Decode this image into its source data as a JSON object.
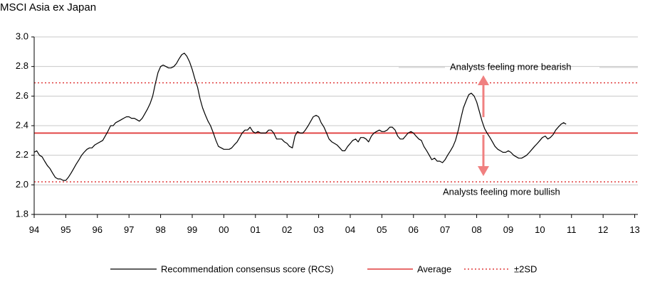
{
  "title": "MSCI Asia ex Japan",
  "colors": {
    "rcs": "#000000",
    "average": "#e03c3c",
    "band": "#e03c3c",
    "arrow": "#f08080",
    "grid": "#c8c8c8"
  },
  "chart_data": {
    "type": "line",
    "xlabel": "",
    "ylabel": "",
    "x_tick_labels": [
      "94",
      "95",
      "96",
      "97",
      "98",
      "99",
      "00",
      "01",
      "02",
      "03",
      "04",
      "05",
      "06",
      "07",
      "08",
      "09",
      "10",
      "11",
      "12",
      "13"
    ],
    "x_range": [
      1994,
      2013.1
    ],
    "y_tick_labels": [
      "1.8",
      "2.0",
      "2.2",
      "2.4",
      "2.6",
      "2.8",
      "3.0"
    ],
    "ylim": [
      1.8,
      3.0
    ],
    "grid": true,
    "average": 2.35,
    "upper_2sd": 2.69,
    "lower_2sd": 2.02,
    "series": [
      {
        "name": "Recommendation consensus score (RCS)",
        "points": [
          [
            1994.0,
            2.22
          ],
          [
            1994.08,
            2.23
          ],
          [
            1994.17,
            2.2
          ],
          [
            1994.25,
            2.19
          ],
          [
            1994.33,
            2.16
          ],
          [
            1994.42,
            2.13
          ],
          [
            1994.5,
            2.11
          ],
          [
            1994.58,
            2.08
          ],
          [
            1994.67,
            2.05
          ],
          [
            1994.75,
            2.04
          ],
          [
            1994.83,
            2.04
          ],
          [
            1994.92,
            2.03
          ],
          [
            1995.0,
            2.03
          ],
          [
            1995.08,
            2.05
          ],
          [
            1995.17,
            2.08
          ],
          [
            1995.25,
            2.11
          ],
          [
            1995.33,
            2.14
          ],
          [
            1995.42,
            2.17
          ],
          [
            1995.5,
            2.2
          ],
          [
            1995.58,
            2.22
          ],
          [
            1995.67,
            2.24
          ],
          [
            1995.75,
            2.25
          ],
          [
            1995.83,
            2.25
          ],
          [
            1995.92,
            2.27
          ],
          [
            1996.0,
            2.28
          ],
          [
            1996.17,
            2.3
          ],
          [
            1996.33,
            2.36
          ],
          [
            1996.42,
            2.4
          ],
          [
            1996.5,
            2.4
          ],
          [
            1996.58,
            2.42
          ],
          [
            1996.67,
            2.43
          ],
          [
            1996.75,
            2.44
          ],
          [
            1996.83,
            2.45
          ],
          [
            1996.92,
            2.46
          ],
          [
            1997.0,
            2.46
          ],
          [
            1997.08,
            2.45
          ],
          [
            1997.17,
            2.45
          ],
          [
            1997.25,
            2.44
          ],
          [
            1997.33,
            2.43
          ],
          [
            1997.42,
            2.45
          ],
          [
            1997.5,
            2.48
          ],
          [
            1997.58,
            2.51
          ],
          [
            1997.67,
            2.55
          ],
          [
            1997.75,
            2.6
          ],
          [
            1997.83,
            2.68
          ],
          [
            1997.92,
            2.76
          ],
          [
            1998.0,
            2.8
          ],
          [
            1998.08,
            2.81
          ],
          [
            1998.17,
            2.8
          ],
          [
            1998.25,
            2.79
          ],
          [
            1998.33,
            2.79
          ],
          [
            1998.42,
            2.8
          ],
          [
            1998.5,
            2.82
          ],
          [
            1998.58,
            2.85
          ],
          [
            1998.67,
            2.88
          ],
          [
            1998.75,
            2.89
          ],
          [
            1998.83,
            2.87
          ],
          [
            1998.92,
            2.83
          ],
          [
            1999.0,
            2.78
          ],
          [
            1999.08,
            2.72
          ],
          [
            1999.17,
            2.66
          ],
          [
            1999.25,
            2.58
          ],
          [
            1999.33,
            2.52
          ],
          [
            1999.42,
            2.47
          ],
          [
            1999.5,
            2.43
          ],
          [
            1999.58,
            2.4
          ],
          [
            1999.67,
            2.35
          ],
          [
            1999.75,
            2.3
          ],
          [
            1999.83,
            2.26
          ],
          [
            1999.92,
            2.25
          ],
          [
            2000.0,
            2.24
          ],
          [
            2000.08,
            2.24
          ],
          [
            2000.17,
            2.24
          ],
          [
            2000.25,
            2.25
          ],
          [
            2000.33,
            2.27
          ],
          [
            2000.42,
            2.29
          ],
          [
            2000.5,
            2.32
          ],
          [
            2000.58,
            2.35
          ],
          [
            2000.67,
            2.37
          ],
          [
            2000.75,
            2.37
          ],
          [
            2000.83,
            2.39
          ],
          [
            2000.92,
            2.36
          ],
          [
            2001.0,
            2.35
          ],
          [
            2001.08,
            2.36
          ],
          [
            2001.17,
            2.35
          ],
          [
            2001.25,
            2.35
          ],
          [
            2001.33,
            2.35
          ],
          [
            2001.42,
            2.37
          ],
          [
            2001.5,
            2.37
          ],
          [
            2001.58,
            2.35
          ],
          [
            2001.67,
            2.31
          ],
          [
            2001.75,
            2.31
          ],
          [
            2001.83,
            2.31
          ],
          [
            2001.92,
            2.29
          ],
          [
            2002.0,
            2.28
          ],
          [
            2002.08,
            2.26
          ],
          [
            2002.17,
            2.25
          ],
          [
            2002.25,
            2.33
          ],
          [
            2002.33,
            2.36
          ],
          [
            2002.42,
            2.35
          ],
          [
            2002.5,
            2.35
          ],
          [
            2002.58,
            2.37
          ],
          [
            2002.67,
            2.4
          ],
          [
            2002.75,
            2.43
          ],
          [
            2002.83,
            2.46
          ],
          [
            2002.92,
            2.47
          ],
          [
            2003.0,
            2.46
          ],
          [
            2003.08,
            2.42
          ],
          [
            2003.17,
            2.39
          ],
          [
            2003.25,
            2.35
          ],
          [
            2003.33,
            2.31
          ],
          [
            2003.42,
            2.29
          ],
          [
            2003.5,
            2.28
          ],
          [
            2003.58,
            2.27
          ],
          [
            2003.67,
            2.25
          ],
          [
            2003.75,
            2.23
          ],
          [
            2003.83,
            2.23
          ],
          [
            2003.92,
            2.26
          ],
          [
            2004.0,
            2.28
          ],
          [
            2004.08,
            2.3
          ],
          [
            2004.17,
            2.31
          ],
          [
            2004.25,
            2.29
          ],
          [
            2004.33,
            2.32
          ],
          [
            2004.42,
            2.32
          ],
          [
            2004.5,
            2.31
          ],
          [
            2004.58,
            2.29
          ],
          [
            2004.67,
            2.33
          ],
          [
            2004.75,
            2.35
          ],
          [
            2004.83,
            2.36
          ],
          [
            2004.92,
            2.37
          ],
          [
            2005.0,
            2.36
          ],
          [
            2005.08,
            2.36
          ],
          [
            2005.17,
            2.37
          ],
          [
            2005.25,
            2.39
          ],
          [
            2005.33,
            2.39
          ],
          [
            2005.42,
            2.37
          ],
          [
            2005.5,
            2.33
          ],
          [
            2005.58,
            2.31
          ],
          [
            2005.67,
            2.31
          ],
          [
            2005.75,
            2.33
          ],
          [
            2005.83,
            2.35
          ],
          [
            2005.92,
            2.36
          ],
          [
            2006.0,
            2.35
          ],
          [
            2006.08,
            2.33
          ],
          [
            2006.17,
            2.31
          ],
          [
            2006.25,
            2.3
          ],
          [
            2006.33,
            2.26
          ],
          [
            2006.42,
            2.23
          ],
          [
            2006.5,
            2.2
          ],
          [
            2006.58,
            2.17
          ],
          [
            2006.67,
            2.18
          ],
          [
            2006.75,
            2.16
          ],
          [
            2006.83,
            2.16
          ],
          [
            2006.92,
            2.15
          ],
          [
            2007.0,
            2.17
          ],
          [
            2007.08,
            2.2
          ],
          [
            2007.17,
            2.23
          ],
          [
            2007.25,
            2.26
          ],
          [
            2007.33,
            2.3
          ],
          [
            2007.42,
            2.37
          ],
          [
            2007.5,
            2.45
          ],
          [
            2007.58,
            2.52
          ],
          [
            2007.67,
            2.57
          ],
          [
            2007.75,
            2.61
          ],
          [
            2007.83,
            2.62
          ],
          [
            2007.92,
            2.6
          ],
          [
            2008.0,
            2.56
          ],
          [
            2008.08,
            2.5
          ],
          [
            2008.17,
            2.43
          ],
          [
            2008.25,
            2.38
          ],
          [
            2008.33,
            2.35
          ],
          [
            2008.42,
            2.32
          ],
          [
            2008.5,
            2.29
          ],
          [
            2008.58,
            2.26
          ],
          [
            2008.67,
            2.24
          ],
          [
            2008.75,
            2.23
          ],
          [
            2008.83,
            2.22
          ],
          [
            2008.92,
            2.22
          ],
          [
            2009.0,
            2.23
          ],
          [
            2009.08,
            2.22
          ],
          [
            2009.17,
            2.2
          ],
          [
            2009.25,
            2.19
          ],
          [
            2009.33,
            2.18
          ],
          [
            2009.42,
            2.18
          ],
          [
            2009.5,
            2.19
          ],
          [
            2009.58,
            2.2
          ],
          [
            2009.67,
            2.22
          ],
          [
            2009.75,
            2.24
          ],
          [
            2009.83,
            2.26
          ],
          [
            2009.92,
            2.28
          ],
          [
            2010.0,
            2.3
          ],
          [
            2010.08,
            2.32
          ],
          [
            2010.17,
            2.33
          ],
          [
            2010.25,
            2.31
          ],
          [
            2010.33,
            2.32
          ],
          [
            2010.42,
            2.34
          ],
          [
            2010.5,
            2.37
          ],
          [
            2010.58,
            2.39
          ],
          [
            2010.67,
            2.41
          ],
          [
            2010.75,
            2.42
          ],
          [
            2010.83,
            2.41
          ]
        ]
      }
    ],
    "annotations": {
      "bearish": "Analysts feeling more bearish",
      "bullish": "Analysts feeling more bullish"
    },
    "legend": {
      "placement": "bottom",
      "rcs": "Recommendation consensus score (RCS)",
      "average": "Average",
      "band": "±2SD"
    }
  }
}
